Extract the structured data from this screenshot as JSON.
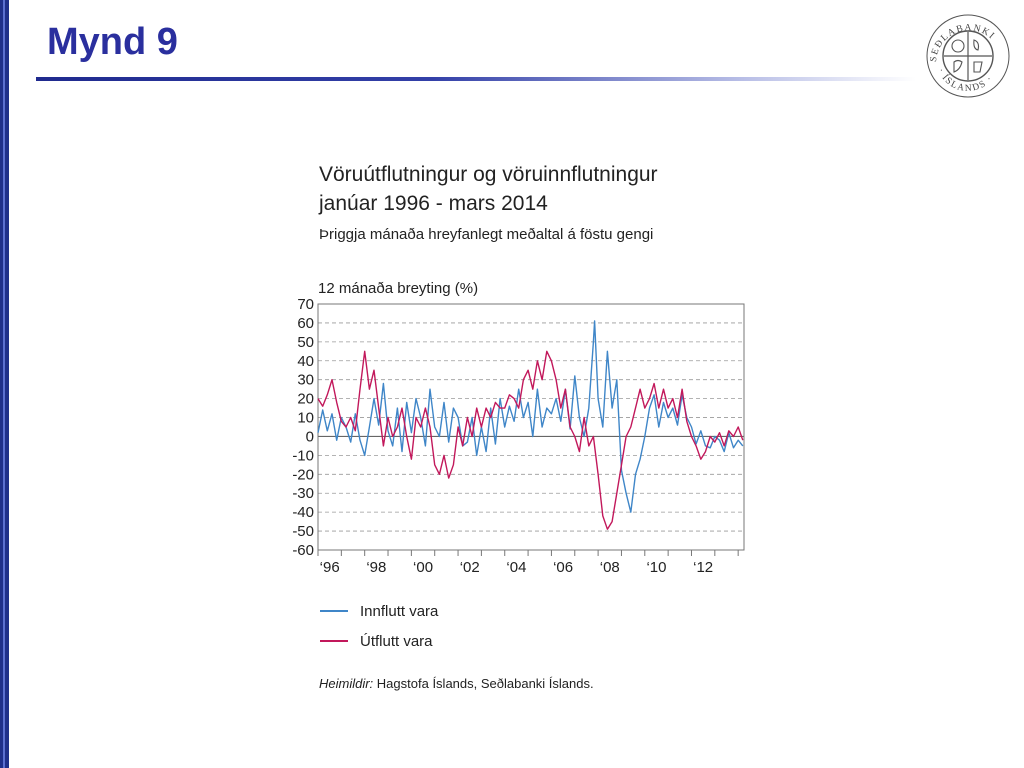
{
  "slide": {
    "title": "Mynd 9"
  },
  "logo": {
    "icon": "sedlabanki-seal-icon",
    "text": "SEÐLABANKI ÍSLANDS"
  },
  "chart_data": {
    "type": "line",
    "title_line1": "Vöruútflutningur og vöruinnflutningur",
    "title_line2": "janúar 1996 - mars 2014",
    "subtitle": "Þriggja mánaða hreyfanlegt meðaltal á föstu gengi",
    "ylabel": "12 mánaða breyting (%)",
    "xlabel": "",
    "ylim": [
      -60,
      70
    ],
    "yticks": [
      "70",
      "60",
      "50",
      "40",
      "30",
      "20",
      "10",
      "0",
      "-10",
      "-20",
      "-30",
      "-40",
      "-50",
      "-60"
    ],
    "xlim": [
      1996.0,
      2014.25
    ],
    "xticks": [
      {
        "x": 1996,
        "label": "‘96"
      },
      {
        "x": 1998,
        "label": "‘98"
      },
      {
        "x": 2000,
        "label": "‘00"
      },
      {
        "x": 2002,
        "label": "‘02"
      },
      {
        "x": 2004,
        "label": "‘04"
      },
      {
        "x": 2006,
        "label": "‘06"
      },
      {
        "x": 2008,
        "label": "‘08"
      },
      {
        "x": 2010,
        "label": "‘10"
      },
      {
        "x": 2012,
        "label": "‘12"
      }
    ],
    "grid": "horizontal dashed",
    "legend_position": "below",
    "series": [
      {
        "name": "Innflutt vara",
        "color": "#3f86c8",
        "x": [
          1996.0,
          1996.2,
          1996.4,
          1996.6,
          1996.8,
          1997.0,
          1997.2,
          1997.4,
          1997.6,
          1997.8,
          1998.0,
          1998.2,
          1998.4,
          1998.6,
          1998.8,
          1999.0,
          1999.2,
          1999.4,
          1999.6,
          1999.8,
          2000.0,
          2000.2,
          2000.4,
          2000.6,
          2000.8,
          2001.0,
          2001.2,
          2001.4,
          2001.6,
          2001.8,
          2002.0,
          2002.2,
          2002.4,
          2002.6,
          2002.8,
          2003.0,
          2003.2,
          2003.4,
          2003.6,
          2003.8,
          2004.0,
          2004.2,
          2004.4,
          2004.6,
          2004.8,
          2005.0,
          2005.2,
          2005.4,
          2005.6,
          2005.8,
          2006.0,
          2006.2,
          2006.4,
          2006.6,
          2006.8,
          2007.0,
          2007.2,
          2007.4,
          2007.6,
          2007.8,
          2007.85,
          2008.0,
          2008.2,
          2008.4,
          2008.6,
          2008.8,
          2009.0,
          2009.2,
          2009.4,
          2009.6,
          2009.8,
          2010.0,
          2010.2,
          2010.4,
          2010.6,
          2010.8,
          2011.0,
          2011.2,
          2011.4,
          2011.6,
          2011.8,
          2012.0,
          2012.2,
          2012.4,
          2012.6,
          2012.8,
          2013.0,
          2013.2,
          2013.4,
          2013.6,
          2013.8,
          2014.0,
          2014.2
        ],
        "values": [
          2,
          14,
          3,
          12,
          -2,
          10,
          5,
          -3,
          12,
          -2,
          -10,
          5,
          20,
          6,
          28,
          3,
          -5,
          15,
          -8,
          18,
          2,
          20,
          10,
          -5,
          25,
          5,
          0,
          18,
          -3,
          15,
          10,
          -5,
          -3,
          10,
          -10,
          5,
          -8,
          15,
          -4,
          20,
          5,
          16,
          8,
          25,
          10,
          18,
          0,
          25,
          5,
          15,
          12,
          20,
          8,
          25,
          4,
          32,
          10,
          0,
          15,
          50,
          61,
          20,
          5,
          45,
          15,
          30,
          -18,
          -30,
          -40,
          -20,
          -12,
          0,
          15,
          22,
          5,
          18,
          10,
          15,
          6,
          22,
          10,
          5,
          -4,
          3,
          -5,
          -6,
          0,
          -2,
          -8,
          2,
          -6,
          -2,
          -5
        ]
      },
      {
        "name": "Útflutt vara",
        "color": "#c2185b",
        "x": [
          1996.0,
          1996.2,
          1996.4,
          1996.6,
          1996.8,
          1997.0,
          1997.2,
          1997.4,
          1997.6,
          1997.8,
          1998.0,
          1998.2,
          1998.4,
          1998.6,
          1998.8,
          1999.0,
          1999.2,
          1999.4,
          1999.6,
          1999.8,
          2000.0,
          2000.2,
          2000.4,
          2000.6,
          2000.8,
          2001.0,
          2001.2,
          2001.4,
          2001.6,
          2001.8,
          2002.0,
          2002.2,
          2002.4,
          2002.6,
          2002.8,
          2003.0,
          2003.2,
          2003.4,
          2003.6,
          2003.8,
          2004.0,
          2004.2,
          2004.4,
          2004.6,
          2004.8,
          2005.0,
          2005.2,
          2005.4,
          2005.6,
          2005.8,
          2006.0,
          2006.2,
          2006.4,
          2006.6,
          2006.8,
          2007.0,
          2007.2,
          2007.4,
          2007.6,
          2007.8,
          2008.0,
          2008.2,
          2008.4,
          2008.6,
          2008.8,
          2009.0,
          2009.2,
          2009.4,
          2009.6,
          2009.8,
          2010.0,
          2010.2,
          2010.4,
          2010.6,
          2010.8,
          2011.0,
          2011.2,
          2011.4,
          2011.6,
          2011.8,
          2012.0,
          2012.2,
          2012.4,
          2012.6,
          2012.8,
          2013.0,
          2013.2,
          2013.4,
          2013.6,
          2013.8,
          2014.0,
          2014.2
        ],
        "values": [
          20,
          16,
          22,
          30,
          18,
          8,
          5,
          10,
          3,
          25,
          45,
          25,
          35,
          15,
          -5,
          10,
          0,
          5,
          15,
          0,
          -12,
          10,
          5,
          15,
          5,
          -15,
          -20,
          -10,
          -22,
          -15,
          5,
          -5,
          10,
          0,
          15,
          5,
          15,
          10,
          18,
          15,
          15,
          22,
          20,
          15,
          30,
          35,
          25,
          40,
          30,
          45,
          40,
          30,
          15,
          25,
          5,
          0,
          -8,
          10,
          -5,
          0,
          -20,
          -42,
          -49,
          -45,
          -30,
          -15,
          0,
          5,
          15,
          25,
          15,
          20,
          28,
          15,
          25,
          15,
          20,
          10,
          25,
          8,
          0,
          -5,
          -12,
          -8,
          0,
          -3,
          2,
          -5,
          3,
          0,
          5,
          -2
        ]
      }
    ]
  },
  "legend": {
    "items": [
      {
        "label": "Innflutt vara",
        "color": "#3f86c8"
      },
      {
        "label": "Útflutt vara",
        "color": "#c2185b"
      }
    ]
  },
  "source": {
    "label": "Heimildir:",
    "text": "Hagstofa Íslands, Seðlabanki Íslands."
  }
}
